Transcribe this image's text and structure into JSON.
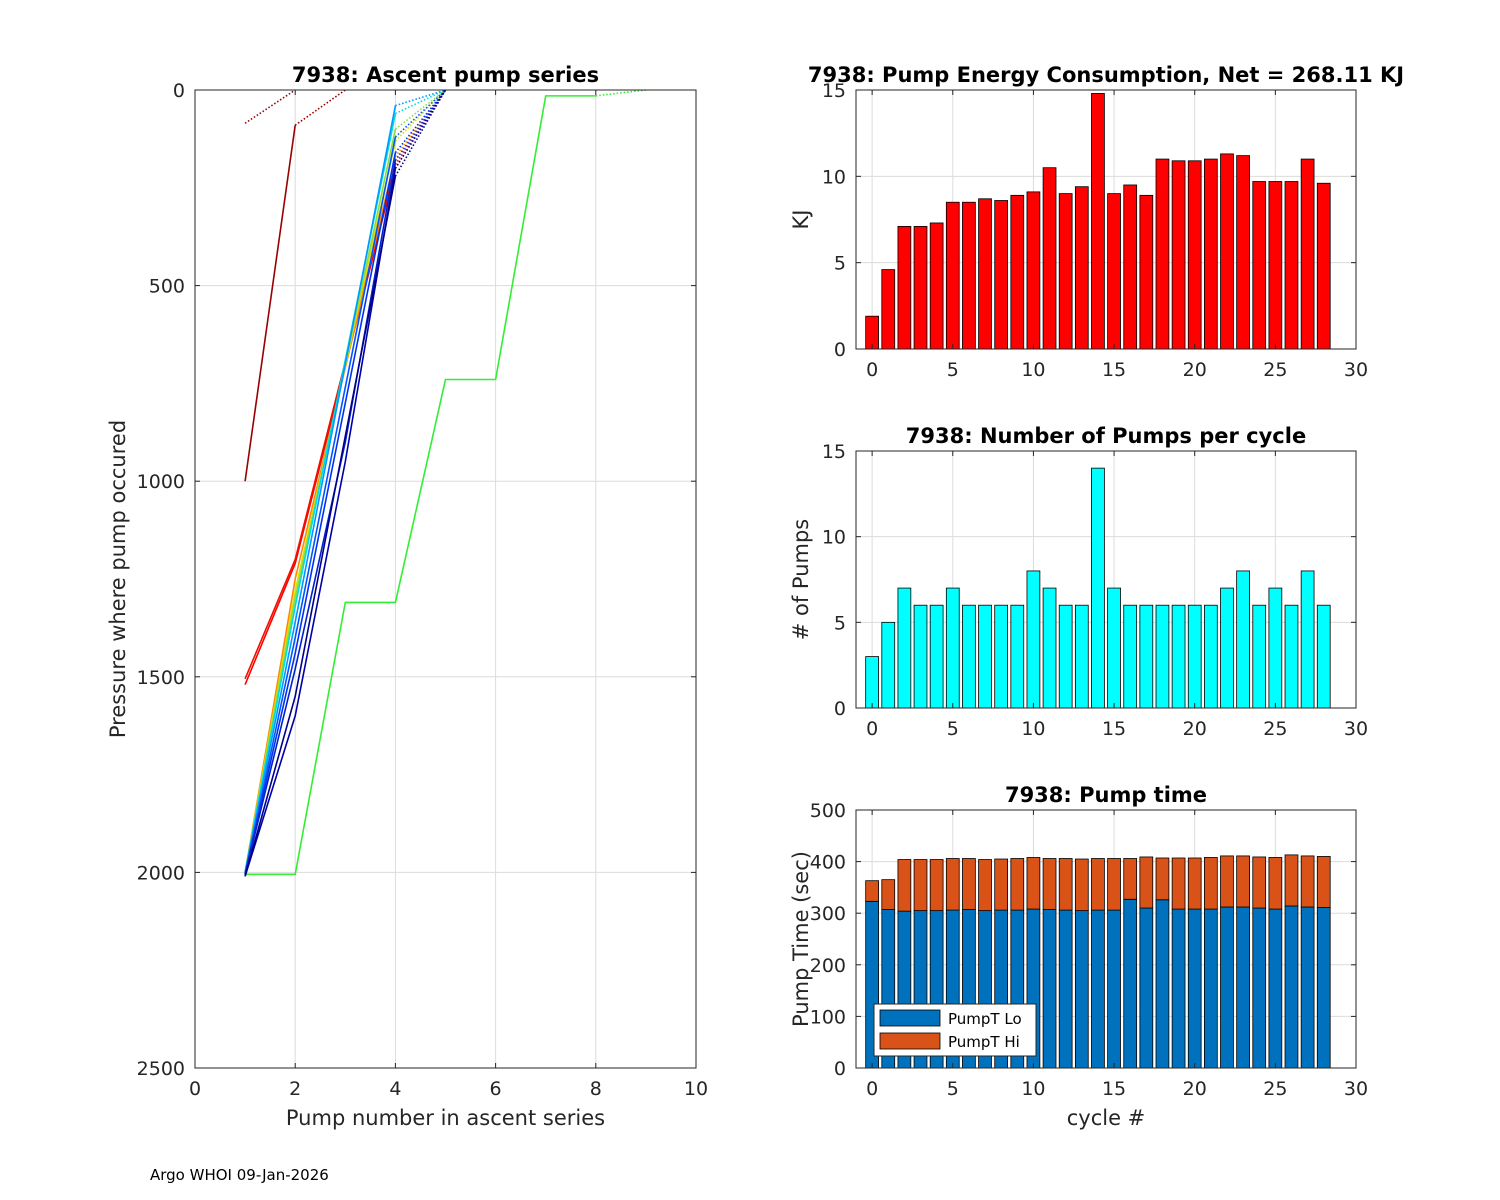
{
  "footer": "Argo WHOI 09-Jan-2026",
  "colors": {
    "energy_bar": "#ff0000",
    "pumps_bar": "#00ffff",
    "pumpt_lo": "#0072bd",
    "pumpt_hi": "#d95319",
    "grid": "#dcdcdc",
    "axis": "#262626"
  },
  "chart_data": [
    {
      "id": "ascent",
      "type": "line",
      "title": "7938: Ascent pump series",
      "xlabel": "Pump number in ascent series",
      "ylabel": "Pressure where pump occured",
      "xlim": [
        0,
        10
      ],
      "ylim": [
        0,
        2500
      ],
      "y_reversed": true,
      "xticks": [
        0,
        2,
        4,
        6,
        8,
        10
      ],
      "yticks": [
        0,
        500,
        1000,
        1500,
        2000,
        2500
      ],
      "grid": true,
      "series": [
        {
          "name": "green",
          "color": "#33ee33",
          "x": [
            1,
            2,
            3,
            4,
            5,
            6,
            7,
            8
          ],
          "y": [
            2005,
            2005,
            1310,
            1310,
            740,
            740,
            15,
            15
          ],
          "dotted_x": [
            8,
            9
          ],
          "dotted_y": [
            15,
            0
          ]
        },
        {
          "name": "darkred-a",
          "color": "#990000",
          "x": [
            1,
            2
          ],
          "y": [
            1000,
            90
          ],
          "dotted_x": [
            2,
            3
          ],
          "dotted_y": [
            90,
            0
          ]
        },
        {
          "name": "darkred-b",
          "color": "#990000",
          "x": [],
          "y": [],
          "dotted_x": [
            1,
            2
          ],
          "dotted_y": [
            85,
            0
          ]
        },
        {
          "name": "red-1",
          "color": "#ff0000",
          "x": [
            1,
            2,
            4
          ],
          "y": [
            1520,
            1210,
            200
          ],
          "dotted_x": [
            4,
            5
          ],
          "dotted_y": [
            200,
            0
          ]
        },
        {
          "name": "red-2",
          "color": "#ee1100",
          "x": [
            1,
            2,
            4
          ],
          "y": [
            1505,
            1200,
            190
          ],
          "dotted_x": [
            4,
            5
          ],
          "dotted_y": [
            190,
            0
          ]
        },
        {
          "name": "orange",
          "color": "#ff8800",
          "x": [
            1,
            2,
            4
          ],
          "y": [
            2000,
            1250,
            170
          ],
          "dotted_x": [
            4,
            5
          ],
          "dotted_y": [
            170,
            0
          ]
        },
        {
          "name": "yellow",
          "color": "#dddd00",
          "x": [
            1,
            2,
            4
          ],
          "y": [
            2000,
            1280,
            130
          ],
          "dotted_x": [
            4,
            5
          ],
          "dotted_y": [
            130,
            0
          ]
        },
        {
          "name": "lightgreen",
          "color": "#88dd44",
          "x": [
            1,
            2,
            4
          ],
          "y": [
            2000,
            1300,
            100
          ],
          "dotted_x": [
            4,
            5
          ],
          "dotted_y": [
            100,
            0
          ]
        },
        {
          "name": "cyan",
          "color": "#00dddd",
          "x": [
            1,
            2,
            4
          ],
          "y": [
            2000,
            1320,
            60
          ],
          "dotted_x": [
            4,
            5
          ],
          "dotted_y": [
            60,
            0
          ]
        },
        {
          "name": "skyblue",
          "color": "#0099ff",
          "x": [
            1,
            2,
            4
          ],
          "y": [
            2000,
            1360,
            40
          ],
          "dotted_x": [
            4,
            5
          ],
          "dotted_y": [
            40,
            0
          ]
        },
        {
          "name": "blue-1",
          "color": "#0055ff",
          "x": [
            1,
            2,
            4
          ],
          "y": [
            2005,
            1400,
            120
          ],
          "dotted_x": [
            4,
            5
          ],
          "dotted_y": [
            120,
            0
          ]
        },
        {
          "name": "blue-2",
          "color": "#0033ee",
          "x": [
            1,
            2,
            4
          ],
          "y": [
            2005,
            1440,
            160
          ],
          "dotted_x": [
            4,
            5
          ],
          "dotted_y": [
            160,
            0
          ]
        },
        {
          "name": "blue-3",
          "color": "#0022cc",
          "x": [
            1,
            2,
            3,
            4
          ],
          "y": [
            2005,
            1480,
            900,
            180
          ],
          "dotted_x": [
            4,
            5
          ],
          "dotted_y": [
            180,
            0
          ]
        },
        {
          "name": "navy-1",
          "color": "#0000aa",
          "x": [
            1,
            2,
            3,
            4
          ],
          "y": [
            2010,
            1600,
            950,
            200
          ],
          "dotted_x": [
            4,
            5
          ],
          "dotted_y": [
            200,
            0
          ]
        },
        {
          "name": "navy-2",
          "color": "#000088",
          "x": [
            1,
            2,
            4
          ],
          "y": [
            2010,
            1550,
            220
          ],
          "dotted_x": [
            4,
            5
          ],
          "dotted_y": [
            220,
            0
          ]
        }
      ]
    },
    {
      "id": "energy",
      "type": "bar",
      "title": "7938: Pump Energy Consumption,  Net = 268.11 KJ",
      "xlabel": "",
      "ylabel": "KJ",
      "xlim": [
        -1,
        30
      ],
      "ylim": [
        0,
        15
      ],
      "xticks": [
        0,
        5,
        10,
        15,
        20,
        25,
        30
      ],
      "yticks": [
        0,
        5,
        10,
        15
      ],
      "grid": true,
      "categories": [
        0,
        1,
        2,
        3,
        4,
        5,
        6,
        7,
        8,
        9,
        10,
        11,
        12,
        13,
        14,
        15,
        16,
        17,
        18,
        19,
        20,
        21,
        22,
        23,
        24,
        25,
        26,
        27,
        28
      ],
      "values": [
        1.9,
        4.6,
        7.1,
        7.1,
        7.3,
        8.5,
        8.5,
        8.7,
        8.6,
        8.9,
        9.1,
        10.5,
        9.0,
        9.4,
        14.8,
        9.0,
        9.5,
        8.9,
        11.0,
        10.9,
        10.9,
        11.0,
        11.3,
        11.2,
        9.7,
        9.7,
        9.7,
        11.0,
        9.6
      ]
    },
    {
      "id": "pumps",
      "type": "bar",
      "title": "7938: Number of Pumps per cycle",
      "xlabel": "",
      "ylabel": "# of Pumps",
      "xlim": [
        -1,
        30
      ],
      "ylim": [
        0,
        15
      ],
      "xticks": [
        0,
        5,
        10,
        15,
        20,
        25,
        30
      ],
      "yticks": [
        0,
        5,
        10,
        15
      ],
      "grid": true,
      "categories": [
        0,
        1,
        2,
        3,
        4,
        5,
        6,
        7,
        8,
        9,
        10,
        11,
        12,
        13,
        14,
        15,
        16,
        17,
        18,
        19,
        20,
        21,
        22,
        23,
        24,
        25,
        26,
        27,
        28
      ],
      "values": [
        3,
        5,
        7,
        6,
        6,
        7,
        6,
        6,
        6,
        6,
        8,
        7,
        6,
        6,
        14,
        7,
        6,
        6,
        6,
        6,
        6,
        6,
        7,
        8,
        6,
        7,
        6,
        8,
        6
      ]
    },
    {
      "id": "pumptime",
      "type": "bar",
      "stacked": true,
      "title": "7938: Pump time",
      "xlabel": "cycle #",
      "ylabel": "Pump Time (sec)",
      "xlim": [
        -1,
        30
      ],
      "ylim": [
        0,
        500
      ],
      "xticks": [
        0,
        5,
        10,
        15,
        20,
        25,
        30
      ],
      "yticks": [
        0,
        100,
        200,
        300,
        400,
        500
      ],
      "grid": true,
      "legend": "bottom-left",
      "categories": [
        0,
        1,
        2,
        3,
        4,
        5,
        6,
        7,
        8,
        9,
        10,
        11,
        12,
        13,
        14,
        15,
        16,
        17,
        18,
        19,
        20,
        21,
        22,
        23,
        24,
        25,
        26,
        27,
        28
      ],
      "series": [
        {
          "name": "PumpT Lo",
          "values": [
            323,
            307,
            304,
            305,
            305,
            306,
            307,
            305,
            306,
            306,
            308,
            307,
            306,
            305,
            306,
            306,
            327,
            310,
            326,
            308,
            308,
            308,
            312,
            312,
            310,
            308,
            314,
            312,
            311
          ]
        },
        {
          "name": "PumpT Hi",
          "values": [
            40,
            58,
            100,
            99,
            99,
            100,
            99,
            99,
            99,
            100,
            100,
            99,
            100,
            100,
            100,
            100,
            79,
            99,
            81,
            99,
            99,
            100,
            99,
            99,
            99,
            100,
            99,
            99,
            99
          ]
        }
      ]
    }
  ]
}
